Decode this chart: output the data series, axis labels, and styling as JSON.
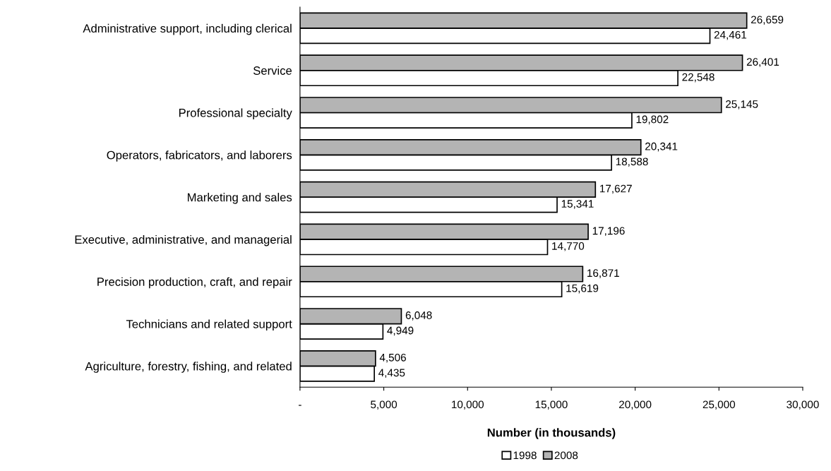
{
  "chart_data": {
    "type": "bar",
    "orientation": "horizontal",
    "xlabel": "Number (in thousands)",
    "categories": [
      "Administrative support, including clerical",
      "Service",
      "Professional specialty",
      "Operators, fabricators, and laborers",
      "Marketing and sales",
      "Executive, administrative, and managerial",
      "Precision production, craft, and repair",
      "Technicians and related support",
      "Agriculture, forestry, fishing, and related"
    ],
    "series": [
      {
        "name": "1998",
        "color": "#ffffff",
        "values": [
          24461,
          22548,
          19802,
          18588,
          15341,
          14770,
          15619,
          4949,
          4435
        ],
        "value_labels": [
          "24,461",
          "22,548",
          "19,802",
          "18,588",
          "15,341",
          "14,770",
          "15,619",
          "4,949",
          "4,435"
        ]
      },
      {
        "name": "2008",
        "color": "#b4b4b4",
        "values": [
          26659,
          26401,
          25145,
          20341,
          17627,
          17196,
          16871,
          6048,
          4506
        ],
        "value_labels": [
          "26,659",
          "26,401",
          "25,145",
          "20,341",
          "17,627",
          "17,196",
          "16,871",
          "6,048",
          "4,506"
        ]
      }
    ],
    "xlim": [
      0,
      30000
    ],
    "xticks": [
      {
        "value": 0,
        "label": "-"
      },
      {
        "value": 5000,
        "label": "5,000"
      },
      {
        "value": 10000,
        "label": "10,000"
      },
      {
        "value": 15000,
        "label": "15,000"
      },
      {
        "value": 20000,
        "label": "20,000"
      },
      {
        "value": 25000,
        "label": "25,000"
      },
      {
        "value": 30000,
        "label": "30,000"
      }
    ],
    "grid": false,
    "legend": "bottom"
  }
}
